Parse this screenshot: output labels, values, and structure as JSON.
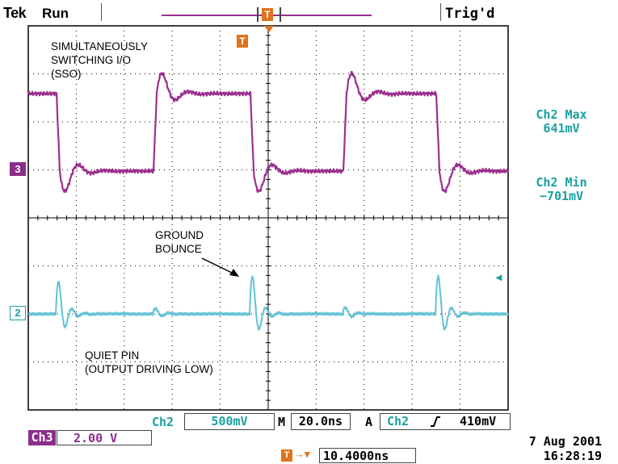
{
  "header": {
    "brand": "Tek",
    "run_state": "Run",
    "trigger_status": "Trig'd"
  },
  "annotations": {
    "sso_line1": "SIMULTANEOUSLY",
    "sso_line2": "SWITCHING I/O",
    "sso_line3": "(SSO)",
    "gb_line1": "GROUND",
    "gb_line2": "BOUNCE",
    "qp_line1": "QUIET PIN",
    "qp_line2": "(OUTPUT DRIVING LOW)"
  },
  "measurements": {
    "max_label": "Ch2 Max",
    "max_value": "641mV",
    "min_label": "Ch2 Min",
    "min_value": "−701mV"
  },
  "channel_markers": {
    "ch3": "3",
    "ch2": "2",
    "trigger": "T"
  },
  "settings": {
    "ch2_label": "Ch2",
    "ch2_scale": "500mV",
    "timebase_label": "M",
    "timebase": "20.0ns",
    "trigger_label": "A",
    "trigger_source": "Ch2",
    "trigger_slope_icon": "rising-edge-icon",
    "trigger_level": "410mV",
    "ch3_label": "Ch3",
    "ch3_scale": "2.00 V",
    "trigger_position": "10.4000ns",
    "date": "7 Aug 2001",
    "time": "16:28:19"
  },
  "colors": {
    "ch3_trace": "#9c2f8e",
    "ch2_trace": "#62c2d4",
    "readout_cyan": "#1aa1a1",
    "marker_orange": "#e0731c",
    "ch3_badge": "#8b2d8b"
  }
}
